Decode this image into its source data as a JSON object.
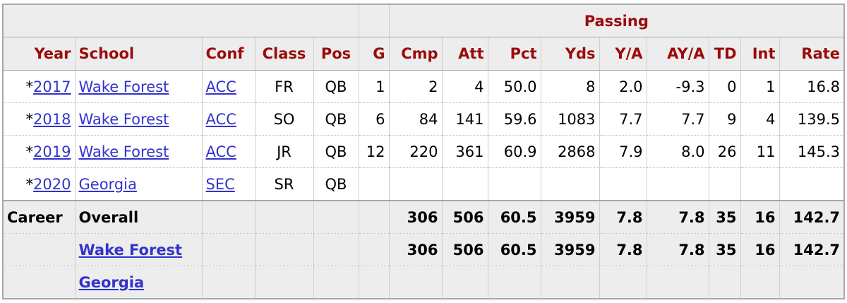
{
  "table": {
    "group_header": "Passing",
    "columns": [
      "Year",
      "School",
      "Conf",
      "Class",
      "Pos",
      "G",
      "Cmp",
      "Att",
      "Pct",
      "Yds",
      "Y/A",
      "AY/A",
      "TD",
      "Int",
      "Rate"
    ],
    "rows": [
      {
        "marker": "*",
        "year": "2017",
        "school": "Wake Forest",
        "conf": "ACC",
        "class": "FR",
        "pos": "QB",
        "stats": [
          "1",
          "2",
          "4",
          "50.0",
          "8",
          "2.0",
          "-9.3",
          "0",
          "1",
          "16.8"
        ]
      },
      {
        "marker": "*",
        "year": "2018",
        "school": "Wake Forest",
        "conf": "ACC",
        "class": "SO",
        "pos": "QB",
        "stats": [
          "6",
          "84",
          "141",
          "59.6",
          "1083",
          "7.7",
          "7.7",
          "9",
          "4",
          "139.5"
        ]
      },
      {
        "marker": "*",
        "year": "2019",
        "school": "Wake Forest",
        "conf": "ACC",
        "class": "JR",
        "pos": "QB",
        "stats": [
          "12",
          "220",
          "361",
          "60.9",
          "2868",
          "7.9",
          "8.0",
          "26",
          "11",
          "145.3"
        ]
      },
      {
        "marker": "*",
        "year": "2020",
        "school": "Georgia",
        "conf": "SEC",
        "class": "SR",
        "pos": "QB",
        "stats": []
      }
    ],
    "totals": [
      {
        "label": "Career",
        "school": "Overall",
        "stats": [
          "306",
          "506",
          "60.5",
          "3959",
          "7.8",
          "7.8",
          "35",
          "16",
          "142.7"
        ]
      },
      {
        "school": "Wake Forest",
        "stats": [
          "306",
          "506",
          "60.5",
          "3959",
          "7.8",
          "7.8",
          "35",
          "16",
          "142.7"
        ]
      },
      {
        "school": "Georgia"
      }
    ]
  }
}
